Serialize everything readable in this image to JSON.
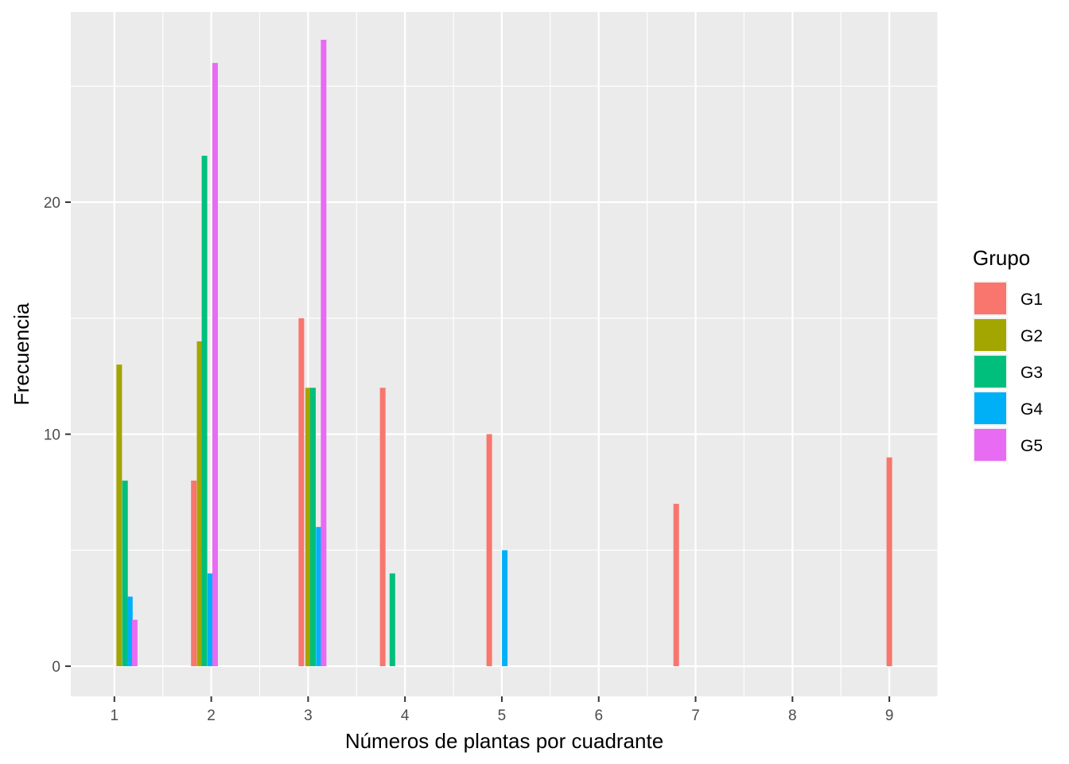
{
  "chart_data": {
    "type": "bar",
    "xlabel": "Números de plantas por cuadrante",
    "ylabel": "Frecuencia",
    "x_ticks": [
      1,
      2,
      3,
      4,
      5,
      6,
      7,
      8,
      9
    ],
    "y_ticks": [
      0,
      10,
      20
    ],
    "xlim": [
      0.55,
      9.5
    ],
    "ylim": [
      -1.3,
      28.2
    ],
    "grid": true,
    "legend": {
      "title": "Grupo",
      "placement": "right"
    },
    "series": [
      {
        "name": "G1",
        "color": "#F8766D",
        "points": [
          [
            1.82,
            8
          ],
          [
            2.93,
            15
          ],
          [
            3.77,
            12
          ],
          [
            4.87,
            10
          ],
          [
            6.8,
            7
          ],
          [
            9.0,
            9
          ]
        ]
      },
      {
        "name": "G2",
        "color": "#A3A500",
        "points": [
          [
            1.05,
            13
          ],
          [
            1.88,
            14
          ],
          [
            3.0,
            12
          ]
        ]
      },
      {
        "name": "G3",
        "color": "#00BF7D",
        "points": [
          [
            1.11,
            8
          ],
          [
            1.93,
            22
          ],
          [
            3.05,
            12
          ],
          [
            3.87,
            4
          ]
        ]
      },
      {
        "name": "G4",
        "color": "#00B0F6",
        "points": [
          [
            1.16,
            3
          ],
          [
            1.99,
            4
          ],
          [
            3.11,
            6
          ],
          [
            5.03,
            5
          ]
        ]
      },
      {
        "name": "G5",
        "color": "#E76BF3",
        "points": [
          [
            1.21,
            2
          ],
          [
            2.04,
            26
          ],
          [
            3.16,
            27
          ]
        ]
      }
    ]
  }
}
